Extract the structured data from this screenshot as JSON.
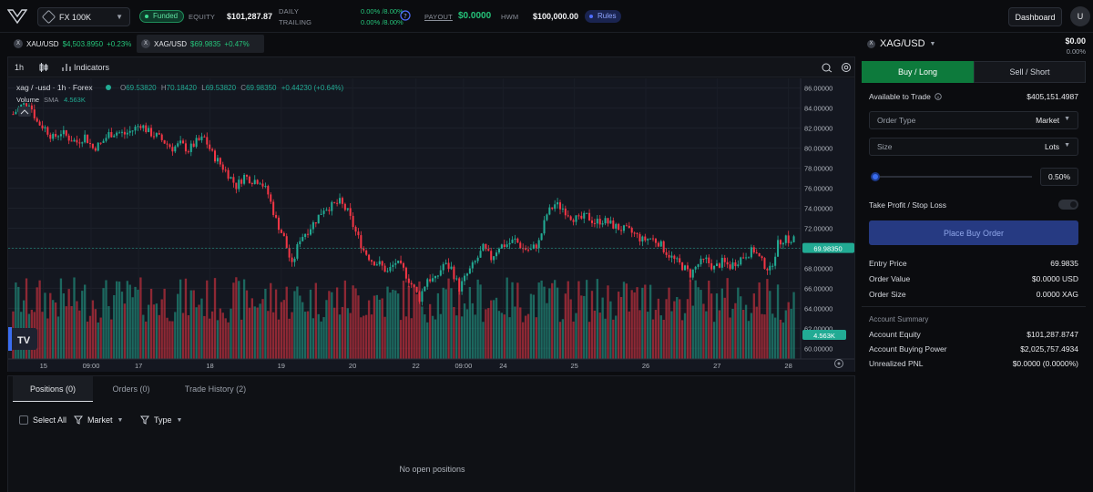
{
  "topbar": {
    "account": "FX 100K",
    "funded_label": "Funded",
    "equity_label": "EQUITY",
    "equity_value": "$101,287.87",
    "daily_label": "DAILY",
    "trailing_label": "TRAILING",
    "daily_value": "0.00% /8.00%",
    "trailing_value": "0.00% /8.00%",
    "payout_label": "PAYOUT",
    "payout_value": "$0.0000",
    "hwm_label": "HWM",
    "hwm_value": "$100,000.00",
    "rules_label": "Rules",
    "dashboard_label": "Dashboard",
    "avatar_letter": "U",
    "help_icon": "question-circle-icon"
  },
  "symbol_tabs": [
    {
      "symbol": "XAU/USD",
      "price": "$4,503.8950",
      "change": "+0.23%"
    },
    {
      "symbol": "XAG/USD",
      "price": "$69.9835",
      "change": "+0.47%"
    }
  ],
  "chart_toolbar": {
    "interval": "1h",
    "indicators_label": "Indicators"
  },
  "chart_data": {
    "type": "candlestick",
    "legend_title": "xag / -usd · 1h · Forex",
    "ohlc_o": "69.53820",
    "ohlc_h": "70.18420",
    "ohlc_l": "69.53820",
    "ohlc_c": "69.98350",
    "ohlc_change": "+0.44230 (+0.64%)",
    "volume_label": "Volume",
    "volume_sma_label": "SMA",
    "volume_sma_value": "4.563K",
    "last_price_label": "69.98350",
    "volume_marker_label": "4.563K",
    "y_ticks": [
      "86.00000",
      "84.00000",
      "82.00000",
      "80.00000",
      "78.00000",
      "76.00000",
      "74.00000",
      "72.00000",
      "70.00000",
      "68.00000",
      "66.00000",
      "64.00000",
      "62.00000",
      "60.00000"
    ],
    "ylim": [
      59.3,
      86.6
    ],
    "x_ticks": [
      {
        "label": "15",
        "index": 4
      },
      {
        "label": "09:00",
        "index": 10
      },
      {
        "label": "17",
        "index": 16
      },
      {
        "label": "18",
        "index": 25
      },
      {
        "label": "19",
        "index": 34
      },
      {
        "label": "20",
        "index": 43
      },
      {
        "label": "22",
        "index": 51
      },
      {
        "label": "09:00",
        "index": 57
      },
      {
        "label": "24",
        "index": 62
      },
      {
        "label": "25",
        "index": 71
      },
      {
        "label": "26",
        "index": 80
      },
      {
        "label": "27",
        "index": 89
      },
      {
        "label": "28",
        "index": 98
      }
    ],
    "closes": [
      83.4,
      84.2,
      84.6,
      82.6,
      82.0,
      81.0,
      81.6,
      81.0,
      80.6,
      81.2,
      80.0,
      80.4,
      81.4,
      81.6,
      81.4,
      81.8,
      82.4,
      81.6,
      81.2,
      80.6,
      80.0,
      80.4,
      79.8,
      80.6,
      81.0,
      79.4,
      78.4,
      77.4,
      76.2,
      77.2,
      76.8,
      76.8,
      75.4,
      72.8,
      71.0,
      68.2,
      71.0,
      71.8,
      72.8,
      74.0,
      74.2,
      74.6,
      73.6,
      71.6,
      69.8,
      68.8,
      68.4,
      67.6,
      68.6,
      67.8,
      66.4,
      65.0,
      67.0,
      66.8,
      68.4,
      68.0,
      66.0,
      67.4,
      68.6,
      70.0,
      69.0,
      70.2,
      70.4,
      70.8,
      70.0,
      69.8,
      70.6,
      73.4,
      74.4,
      74.0,
      73.2,
      72.8,
      73.2,
      72.6,
      72.8,
      72.4,
      72.0,
      71.8,
      71.4,
      70.8,
      71.0,
      70.6,
      69.6,
      68.8,
      68.2,
      67.4,
      68.4,
      68.8,
      68.0,
      68.6,
      68.2,
      68.8,
      69.4,
      69.8,
      68.6,
      67.8,
      70.4,
      71.2,
      69.98
    ]
  },
  "bottom_panel": {
    "tabs": [
      "Positions (0)",
      "Orders (0)",
      "Trade History (2)"
    ],
    "select_all": "Select All",
    "market_filter": "Market",
    "type_filter": "Type",
    "empty_message": "No open positions"
  },
  "order_panel": {
    "symbol": "XAG/USD",
    "price": "$0.00",
    "change": "0.00%",
    "buy_label": "Buy / Long",
    "sell_label": "Sell / Short",
    "available_label": "Available to Trade",
    "available_value": "$405,151.4987",
    "order_type_label": "Order Type",
    "order_type_value": "Market",
    "size_label": "Size",
    "size_unit": "Lots",
    "slider_value": "0.50%",
    "tpsl_label": "Take Profit / Stop Loss",
    "place_label": "Place Buy Order",
    "entry_price_label": "Entry Price",
    "entry_price_value": "69.9835",
    "order_value_label": "Order Value",
    "order_value_value": "$0.0000 USD",
    "order_size_label": "Order Size",
    "order_size_value": "0.0000 XAG",
    "account_summary_label": "Account Summary",
    "account_equity_label": "Account Equity",
    "account_equity_value": "$101,287.8747",
    "buying_power_label": "Account Buying Power",
    "buying_power_value": "$2,025,757.4934",
    "upnl_label": "Unrealized PNL",
    "upnl_value": "$0.0000 (0.0000%)"
  },
  "colors": {
    "up": "#22ab94",
    "down": "#f23645",
    "accent": "#3a6df0"
  }
}
